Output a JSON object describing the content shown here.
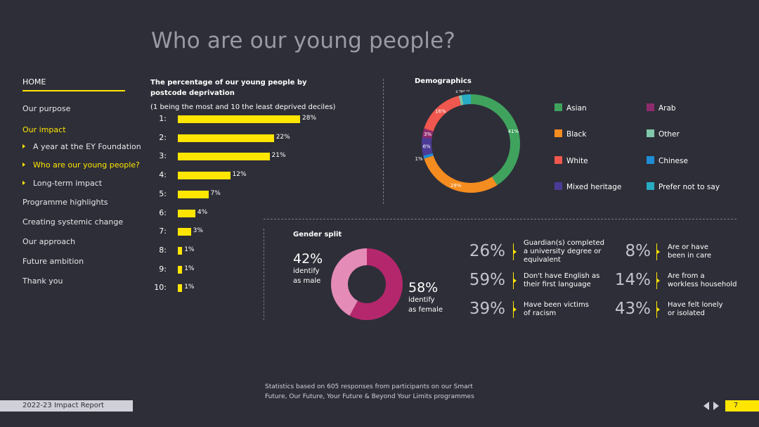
{
  "title": "Who are our young people?",
  "nav": {
    "home": "HOME",
    "items": [
      {
        "label": "Our purpose",
        "active": false,
        "sub": false
      },
      {
        "label": "Our impact",
        "active": true,
        "sub": false
      },
      {
        "label": "A year at the EY Foundation",
        "active": false,
        "sub": true
      },
      {
        "label": "Who are our young people?",
        "active": true,
        "sub": true
      },
      {
        "label": "Long-term impact",
        "active": false,
        "sub": true
      },
      {
        "label": "Programme highlights",
        "active": false,
        "sub": false
      },
      {
        "label": "Creating systemic change",
        "active": false,
        "sub": false
      },
      {
        "label": "Our approach",
        "active": false,
        "sub": false
      },
      {
        "label": "Future ambition",
        "active": false,
        "sub": false
      },
      {
        "label": "Thank you",
        "active": false,
        "sub": false
      }
    ]
  },
  "deprivation": {
    "title": "The percentage of our young people by postcode deprivation",
    "subtitle": "(1 being the most and 10 the least deprived deciles)",
    "bar_color": "#ffe600",
    "rows": [
      {
        "label": "1:",
        "value": 28,
        "text": "28%"
      },
      {
        "label": "2:",
        "value": 22,
        "text": "22%"
      },
      {
        "label": "3:",
        "value": 21,
        "text": "21%"
      },
      {
        "label": "4:",
        "value": 12,
        "text": "12%"
      },
      {
        "label": "5:",
        "value": 7,
        "text": "7%"
      },
      {
        "label": "6:",
        "value": 4,
        "text": "4%"
      },
      {
        "label": "7:",
        "value": 3,
        "text": "3%"
      },
      {
        "label": "8:",
        "value": 1,
        "text": "1%"
      },
      {
        "label": "9:",
        "value": 1,
        "text": "1%"
      },
      {
        "label": "10:",
        "value": 1,
        "text": "1%"
      }
    ]
  },
  "demographics": {
    "title": "Demographics",
    "segments": [
      {
        "name": "Asian",
        "value": 41,
        "label": "41%",
        "color": "#3fa35e"
      },
      {
        "name": "Black",
        "value": 29,
        "label": "29%",
        "color": "#f58c1f"
      },
      {
        "name": "Chinese",
        "value": 1,
        "label": "1%",
        "color": "#1f8dd6"
      },
      {
        "name": "Mixed heritage",
        "value": 6,
        "label": "6%",
        "color": "#4b3b97"
      },
      {
        "name": "Arab",
        "value": 3,
        "label": "3%",
        "color": "#8e2b6e"
      },
      {
        "name": "White",
        "value": 16,
        "label": "16%",
        "color": "#f0574e"
      },
      {
        "name": "Other",
        "value": 1,
        "label": "1%",
        "color": "#7fc8a9"
      },
      {
        "name": "Prefer not to say",
        "value": 3,
        "label": "3%",
        "color": "#27acc4"
      }
    ],
    "legend": [
      {
        "name": "Asian",
        "color": "#3fa35e"
      },
      {
        "name": "Arab",
        "color": "#8e2b6e"
      },
      {
        "name": "Black",
        "color": "#f58c1f"
      },
      {
        "name": "Other",
        "color": "#7fc8a9"
      },
      {
        "name": "White",
        "color": "#f0574e"
      },
      {
        "name": "Chinese",
        "color": "#1f8dd6"
      },
      {
        "name": "Mixed heritage",
        "color": "#4b3b97"
      },
      {
        "name": "Prefer not to say",
        "color": "#27acc4"
      }
    ]
  },
  "gender": {
    "title": "Gender split",
    "male": {
      "pct": "42%",
      "desc_1": "identify",
      "desc_2": "as male",
      "value": 42,
      "color": "#e58bb7"
    },
    "female": {
      "pct": "58%",
      "desc_1": "identify",
      "desc_2": "as female",
      "value": 58,
      "color": "#b5276c"
    }
  },
  "stats": [
    {
      "pct": "26%",
      "line1": "Guardian(s) completed",
      "line2": "a university degree or",
      "line3": "equivalent"
    },
    {
      "pct": "59%",
      "line1": "Don't have English as",
      "line2": "their first language",
      "line3": ""
    },
    {
      "pct": "39%",
      "line1": "Have been victims",
      "line2": "of racism",
      "line3": ""
    },
    {
      "pct": "8%",
      "line1": "Are or have",
      "line2": "been in care",
      "line3": ""
    },
    {
      "pct": "14%",
      "line1": "Are from a",
      "line2": "workless household",
      "line3": ""
    },
    {
      "pct": "43%",
      "line1": "Have felt lonely",
      "line2": "or isolated",
      "line3": ""
    }
  ],
  "footnote": "Statistics based on 605 responses from participants on our Smart Future, Our Future, Your Future & Beyond Your Limits programmes",
  "footer": {
    "report": "2022-23 Impact Report",
    "page": "7"
  },
  "colors": {
    "background": "#2e2e38",
    "accent": "#ffe600",
    "title": "#9a9aa4"
  }
}
